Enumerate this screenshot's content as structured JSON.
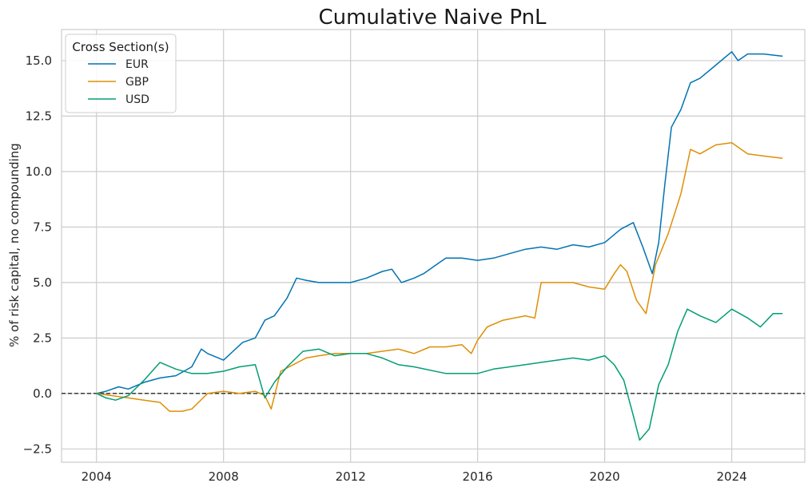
{
  "chart_data": {
    "type": "line",
    "title": "Cumulative Naive PnL",
    "xlabel": "",
    "ylabel": "% of risk capital, no compounding",
    "xlim": [
      2002.9,
      2026.3
    ],
    "ylim": [
      -3.1,
      16.4
    ],
    "x_ticks": [
      2004,
      2008,
      2012,
      2016,
      2020,
      2024
    ],
    "x_tick_labels": [
      "2004",
      "2008",
      "2012",
      "2016",
      "2020",
      "2024"
    ],
    "y_ticks": [
      -2.5,
      0.0,
      2.5,
      5.0,
      7.5,
      10.0,
      12.5,
      15.0
    ],
    "y_tick_labels": [
      "−2.5",
      "0.0",
      "2.5",
      "5.0",
      "7.5",
      "10.0",
      "12.5",
      "15.0"
    ],
    "grid": true,
    "zero_line": 0,
    "legend": {
      "title": "Cross Section(s)",
      "position": "top-left"
    },
    "series": [
      {
        "name": "EUR",
        "color": "#0173b2",
        "x": [
          2004.0,
          2004.3,
          2004.7,
          2005.0,
          2005.5,
          2006.0,
          2006.5,
          2007.0,
          2007.3,
          2007.5,
          2008.0,
          2008.3,
          2008.6,
          2009.0,
          2009.3,
          2009.6,
          2010.0,
          2010.3,
          2010.6,
          2011.0,
          2011.5,
          2012.0,
          2012.5,
          2013.0,
          2013.3,
          2013.6,
          2014.0,
          2014.3,
          2014.8,
          2015.0,
          2015.5,
          2016.0,
          2016.5,
          2017.0,
          2017.5,
          2018.0,
          2018.5,
          2019.0,
          2019.5,
          2020.0,
          2020.5,
          2020.9,
          2021.2,
          2021.5,
          2021.7,
          2021.9,
          2022.1,
          2022.4,
          2022.7,
          2023.0,
          2023.5,
          2024.0,
          2024.2,
          2024.5,
          2025.0,
          2025.6
        ],
        "y": [
          0.0,
          0.1,
          0.3,
          0.2,
          0.5,
          0.7,
          0.8,
          1.2,
          2.0,
          1.8,
          1.5,
          1.9,
          2.3,
          2.5,
          3.3,
          3.5,
          4.3,
          5.2,
          5.1,
          5.0,
          5.0,
          5.0,
          5.2,
          5.5,
          5.6,
          5.0,
          5.2,
          5.4,
          5.9,
          6.1,
          6.1,
          6.0,
          6.1,
          6.3,
          6.5,
          6.6,
          6.5,
          6.7,
          6.6,
          6.8,
          7.4,
          7.7,
          6.6,
          5.4,
          6.8,
          9.5,
          12.0,
          12.8,
          14.0,
          14.2,
          14.8,
          15.4,
          15.0,
          15.3,
          15.3,
          15.2
        ]
      },
      {
        "name": "GBP",
        "color": "#de8f05",
        "x": [
          2004.0,
          2004.5,
          2005.0,
          2005.5,
          2006.0,
          2006.3,
          2006.7,
          2007.0,
          2007.5,
          2008.0,
          2008.5,
          2009.0,
          2009.3,
          2009.5,
          2009.8,
          2010.2,
          2010.6,
          2011.0,
          2011.5,
          2012.0,
          2012.5,
          2013.0,
          2013.5,
          2014.0,
          2014.5,
          2015.0,
          2015.5,
          2015.8,
          2016.0,
          2016.3,
          2016.8,
          2017.5,
          2017.8,
          2018.0,
          2018.5,
          2019.0,
          2019.5,
          2020.0,
          2020.3,
          2020.5,
          2020.7,
          2021.0,
          2021.3,
          2021.6,
          2022.0,
          2022.4,
          2022.7,
          2023.0,
          2023.5,
          2024.0,
          2024.5,
          2025.0,
          2025.6
        ],
        "y": [
          0.0,
          -0.1,
          -0.2,
          -0.3,
          -0.4,
          -0.8,
          -0.8,
          -0.7,
          0.0,
          0.1,
          0.0,
          0.1,
          -0.1,
          -0.7,
          1.0,
          1.3,
          1.6,
          1.7,
          1.8,
          1.8,
          1.8,
          1.9,
          2.0,
          1.8,
          2.1,
          2.1,
          2.2,
          1.8,
          2.4,
          3.0,
          3.3,
          3.5,
          3.4,
          5.0,
          5.0,
          5.0,
          4.8,
          4.7,
          5.4,
          5.8,
          5.5,
          4.2,
          3.6,
          5.8,
          7.2,
          9.0,
          11.0,
          10.8,
          11.2,
          11.3,
          10.8,
          10.7,
          10.6
        ]
      },
      {
        "name": "USD",
        "color": "#029e73",
        "x": [
          2004.0,
          2004.3,
          2004.6,
          2005.0,
          2005.5,
          2006.0,
          2006.5,
          2007.0,
          2007.5,
          2008.0,
          2008.5,
          2009.0,
          2009.3,
          2009.6,
          2010.0,
          2010.5,
          2011.0,
          2011.5,
          2012.0,
          2012.5,
          2013.0,
          2013.5,
          2014.0,
          2015.0,
          2016.0,
          2016.5,
          2017.0,
          2017.5,
          2018.0,
          2019.0,
          2019.5,
          2020.0,
          2020.3,
          2020.6,
          2020.9,
          2021.1,
          2021.4,
          2021.7,
          2022.0,
          2022.3,
          2022.6,
          2023.0,
          2023.5,
          2024.0,
          2024.5,
          2024.9,
          2025.3,
          2025.6
        ],
        "y": [
          0.0,
          -0.2,
          -0.3,
          -0.1,
          0.6,
          1.4,
          1.1,
          0.9,
          0.9,
          1.0,
          1.2,
          1.3,
          -0.2,
          0.5,
          1.2,
          1.9,
          2.0,
          1.7,
          1.8,
          1.8,
          1.6,
          1.3,
          1.2,
          0.9,
          0.9,
          1.1,
          1.2,
          1.3,
          1.4,
          1.6,
          1.5,
          1.7,
          1.3,
          0.6,
          -1.0,
          -2.1,
          -1.6,
          0.4,
          1.3,
          2.8,
          3.8,
          3.5,
          3.2,
          3.8,
          3.4,
          3.0,
          3.6,
          3.6
        ]
      }
    ]
  }
}
